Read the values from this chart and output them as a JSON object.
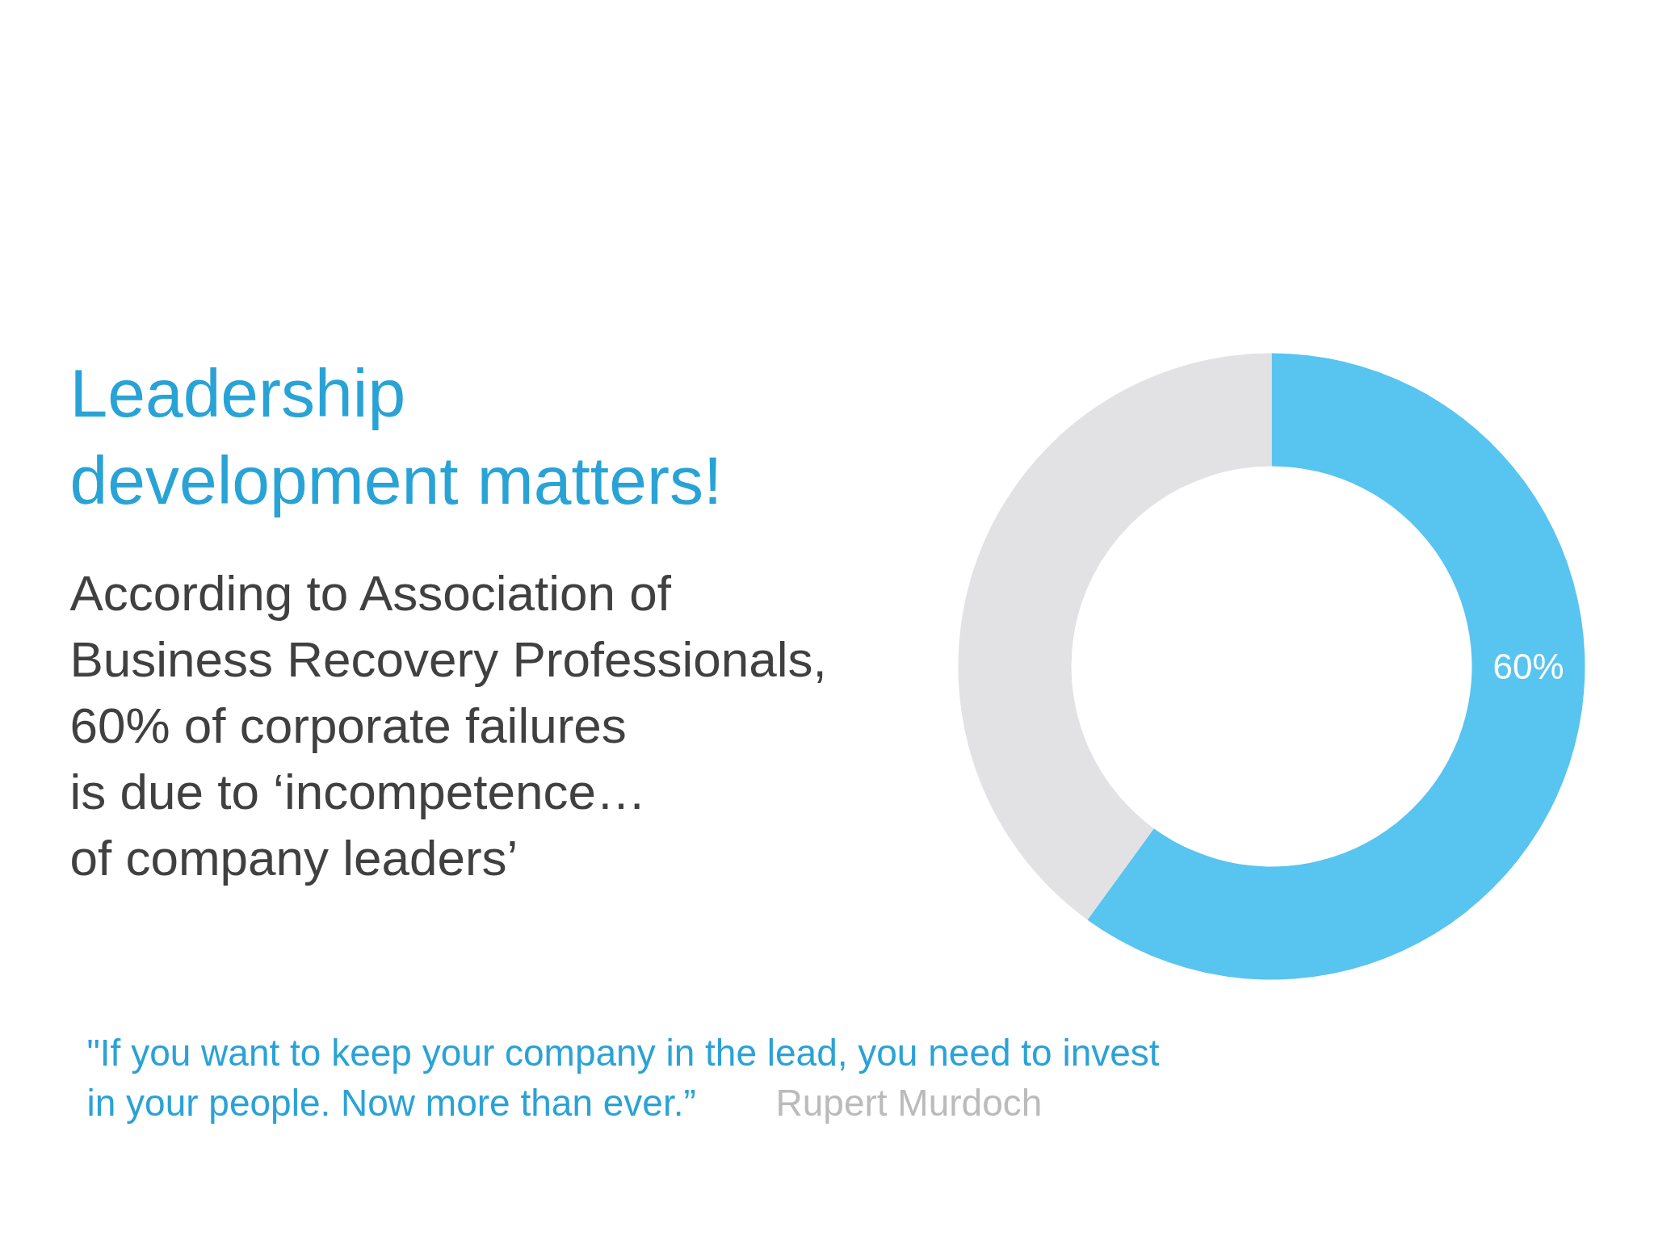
{
  "chart_data": {
    "type": "donut",
    "title": "Leadership development matters!",
    "categories": [
      null,
      null
    ],
    "values": [
      60,
      40
    ],
    "colors": [
      "#58c4f0",
      "#e2e1e3"
    ],
    "value_labels": [
      "60%",
      null
    ],
    "annotations": [
      "According to Association of\nBusiness Recovery Professionals,\n60% of corporate failures\nis due to ‘incompetence…\nof company leaders’",
      "\"If you want to keep your company in the lead, you need to invest\nin your people. Now more than ever.”",
      "Rupert Murdoch"
    ]
  }
}
